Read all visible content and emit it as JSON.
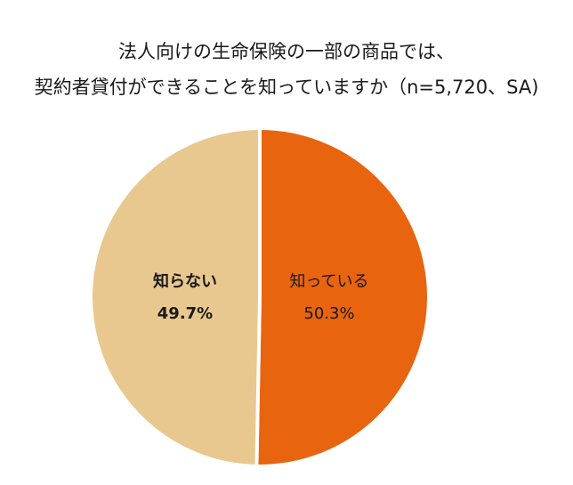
{
  "title_lines": [
    "法人向けの生命保険の一部の商品では、",
    "契約者貸付ができることを知っていますか（n=5,720、SA)"
  ],
  "chart_data": {
    "type": "pie",
    "title": "法人向けの生命保険の一部の商品では、契約者貸付ができることを知っていますか（n=5,720、SA)",
    "categories": [
      "知っている",
      "知らない"
    ],
    "values": [
      50.3,
      49.7
    ],
    "value_labels": [
      "50.3%",
      "49.7%"
    ],
    "colors": [
      "#E8640F",
      "#E8C88E"
    ],
    "label_bold": [
      false,
      true
    ],
    "start_angle": "12 o'clock",
    "direction": "clockwise",
    "legend": "none (labels inside slices)"
  }
}
